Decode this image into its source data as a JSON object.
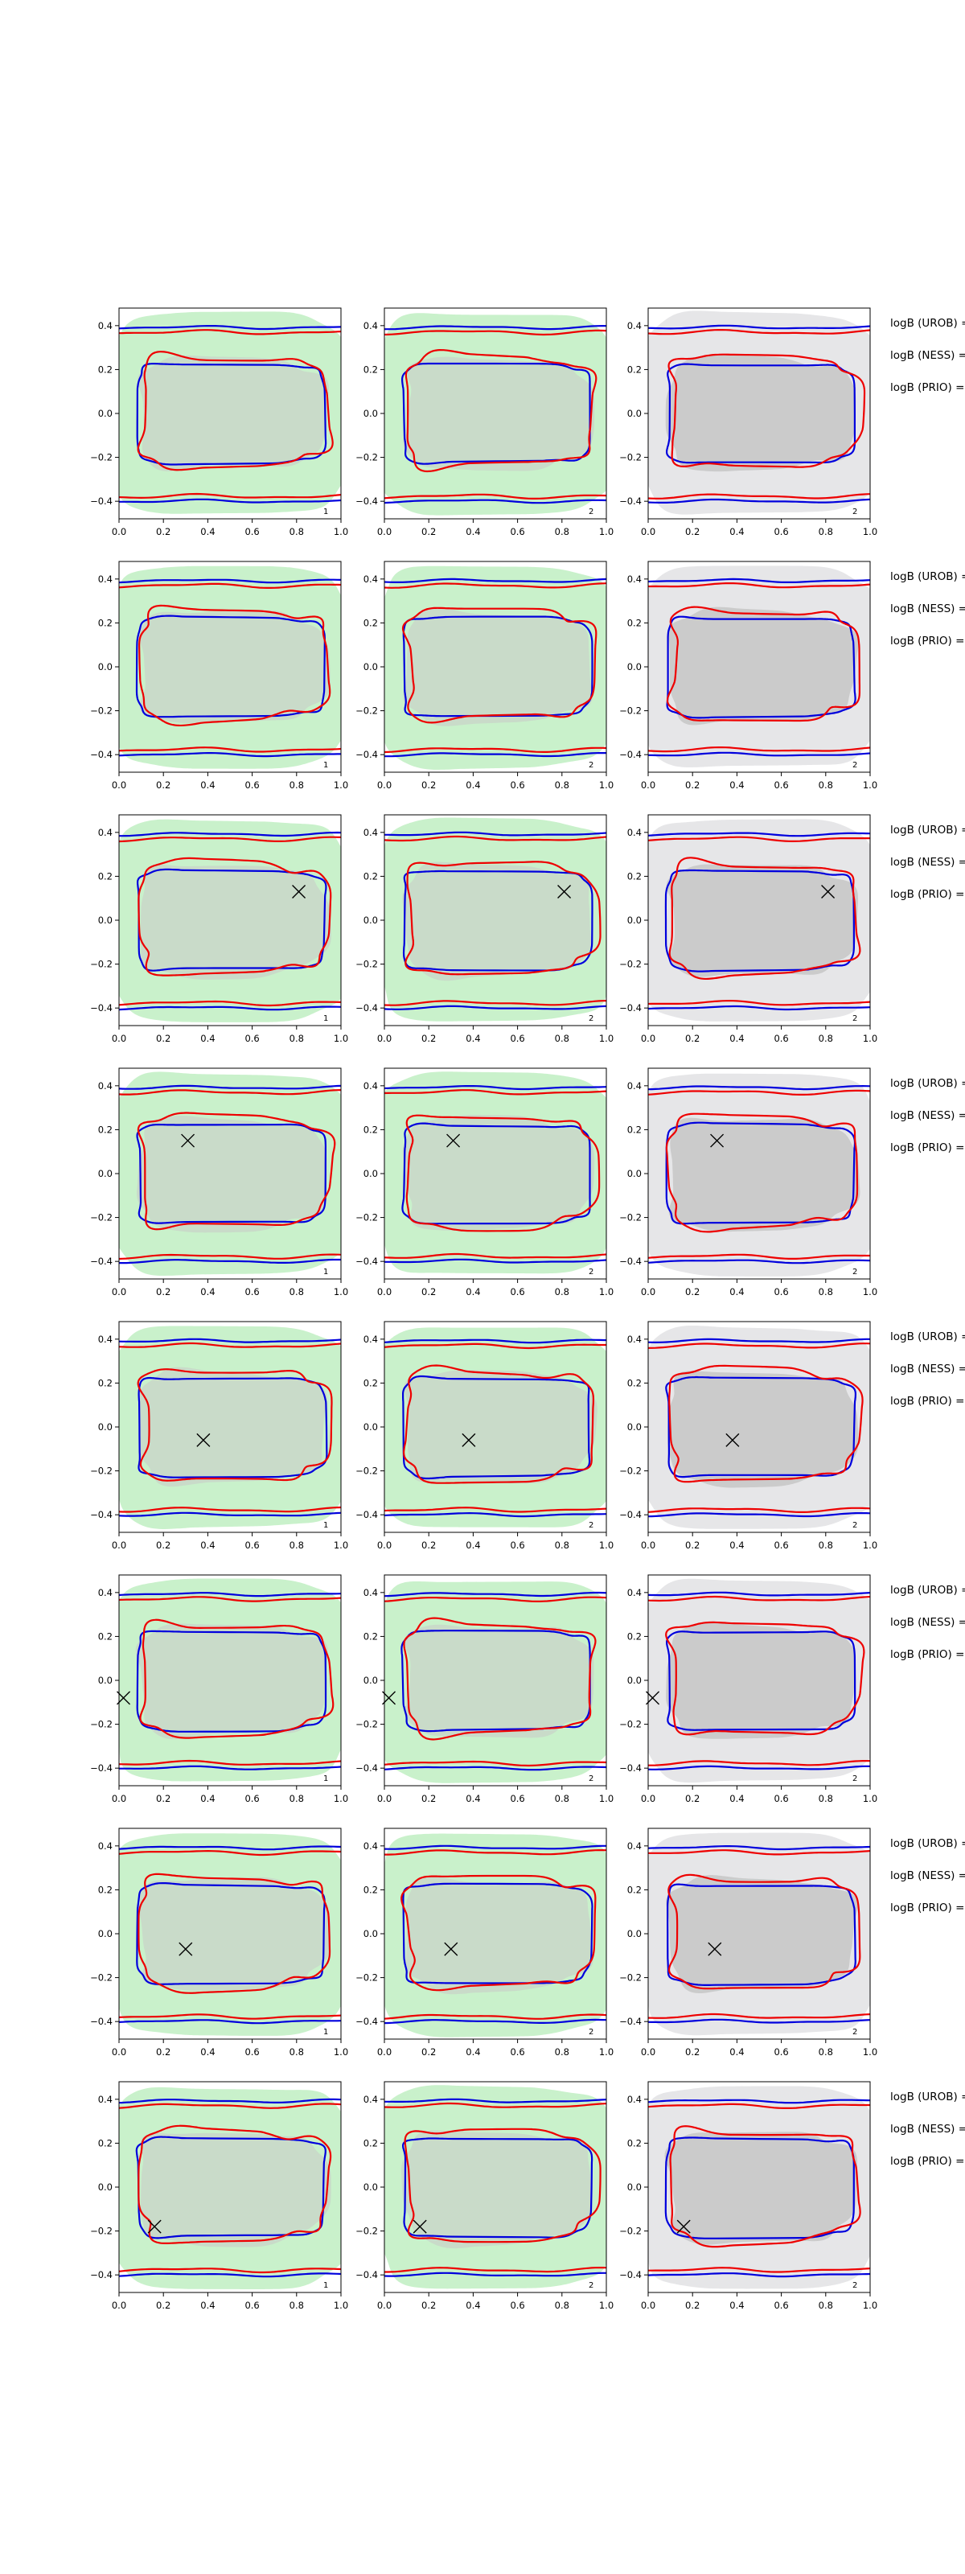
{
  "colors": {
    "red": "#ee0000",
    "blue": "#0000dd",
    "green": "#c9f1cb",
    "grey": "#c8c8c8",
    "lightgrey": "#e6e6e8",
    "frame": "#000000"
  },
  "x_tick_labels": [
    "0.0",
    "0.2",
    "0.4",
    "0.6",
    "0.8",
    "1.0"
  ],
  "y_tick_labels": [
    "0.4",
    "0.2",
    "0.0",
    "−0.2",
    "−0.4"
  ],
  "logb_labels": [
    "logB (UROB) =",
    "logB (NESS) =",
    "logB (PRIO) ="
  ],
  "chart_data": {
    "type": "contour",
    "grid": {
      "rows": 8,
      "cols": 3
    },
    "xlim": [
      0,
      1
    ],
    "ylim": [
      -0.48,
      0.48
    ],
    "xticks": [
      0,
      0.2,
      0.4,
      0.6,
      0.8,
      1.0
    ],
    "yticks": [
      0.4,
      0.2,
      0.0,
      -0.2,
      -0.4
    ],
    "panel_corner_labels": [
      [
        "1",
        "2",
        "2"
      ],
      [
        "1",
        "2",
        "2"
      ],
      [
        "1",
        "2",
        "2"
      ],
      [
        "1",
        "2",
        "2"
      ],
      [
        "1",
        "2",
        "2"
      ],
      [
        "1",
        "2",
        "2"
      ],
      [
        "1",
        "2",
        "2"
      ],
      [
        "1",
        "2",
        "2"
      ]
    ],
    "column_backgrounds": [
      "green",
      "green",
      "lightgrey"
    ],
    "markers": [
      null,
      null,
      {
        "x": 0.81,
        "y": 0.13
      },
      {
        "x": 0.31,
        "y": 0.15
      },
      {
        "x": 0.38,
        "y": -0.06
      },
      {
        "x": 0.02,
        "y": -0.08
      },
      {
        "x": 0.3,
        "y": -0.07
      },
      {
        "x": 0.16,
        "y": -0.18
      }
    ],
    "marker_symbol": "x",
    "legend_text_per_row": [
      "logB (UROB) =",
      "logB (NESS) =",
      "logB (PRIO) ="
    ]
  }
}
